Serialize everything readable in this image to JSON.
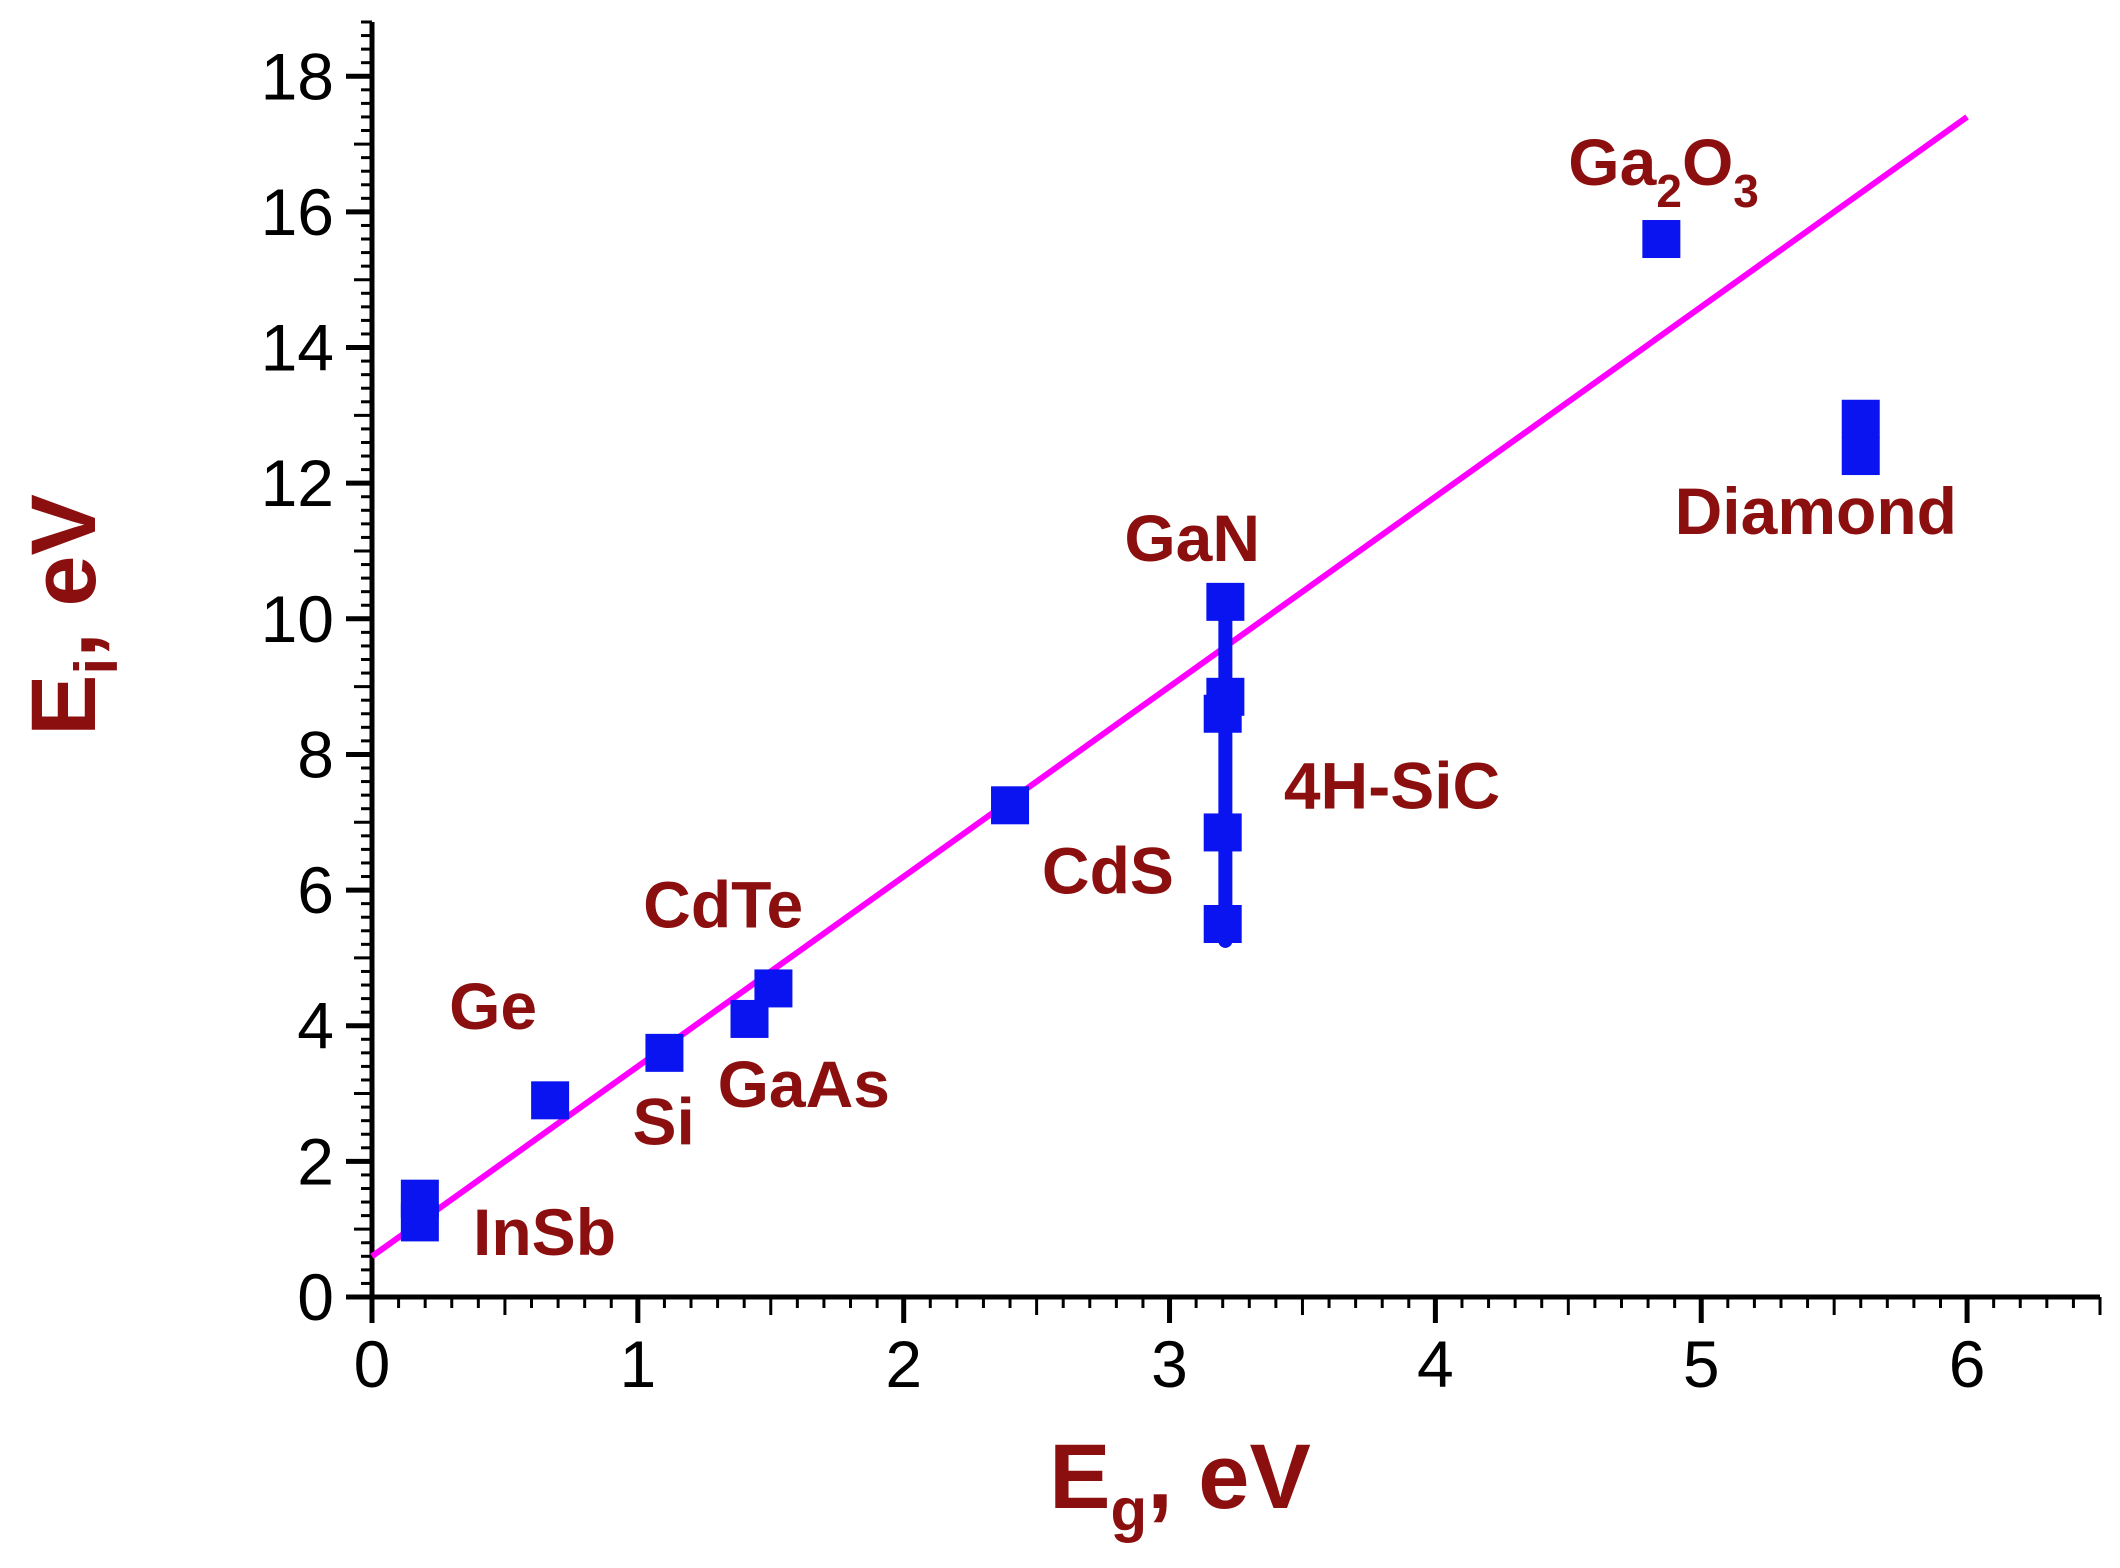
{
  "chart_data": {
    "type": "scatter",
    "title": "",
    "xlabel": {
      "main": "E",
      "sub": "g",
      "suffix": ", eV"
    },
    "ylabel": {
      "main": "E",
      "sub": "i",
      "suffix": ", eV"
    },
    "xlim": [
      0,
      6.5
    ],
    "ylim": [
      0,
      18.8
    ],
    "x_ticks": [
      0,
      1,
      2,
      3,
      4,
      5,
      6
    ],
    "x_tick_labels": [
      "0",
      "1",
      "2",
      "3",
      "4",
      "5",
      "6"
    ],
    "y_ticks": [
      0,
      2,
      4,
      6,
      8,
      10,
      12,
      14,
      16,
      18
    ],
    "y_tick_labels": [
      "0",
      "2",
      "4",
      "6",
      "8",
      "10",
      "12",
      "14",
      "16",
      "18"
    ],
    "grid": false,
    "colors": {
      "marker": "#0a14f0",
      "fit_line": "#ff00ff",
      "label": "#8b0f0f",
      "axis": "#000000"
    },
    "points": [
      {
        "x": 0.18,
        "y": 1.1
      },
      {
        "x": 0.18,
        "y": 1.45
      },
      {
        "x": 0.67,
        "y": 2.9
      },
      {
        "x": 1.1,
        "y": 3.6
      },
      {
        "x": 1.42,
        "y": 4.1
      },
      {
        "x": 1.51,
        "y": 4.55
      },
      {
        "x": 2.4,
        "y": 7.25
      },
      {
        "x": 3.2,
        "y": 5.5
      },
      {
        "x": 3.2,
        "y": 6.85
      },
      {
        "x": 3.2,
        "y": 8.6
      },
      {
        "x": 3.21,
        "y": 8.85
      },
      {
        "x": 3.21,
        "y": 10.25
      },
      {
        "x": 4.85,
        "y": 15.6
      },
      {
        "x": 5.6,
        "y": 12.4
      },
      {
        "x": 5.6,
        "y": 12.95
      }
    ],
    "vertical_bar": {
      "x": 3.21,
      "y_low": 5.25,
      "y_high": 10.15
    },
    "fit_line": {
      "x": [
        0.0,
        6.0
      ],
      "y": [
        0.6,
        17.4
      ]
    },
    "labels": [
      {
        "text": "InSb",
        "x": 0.38,
        "y": 0.62
      },
      {
        "text": "Ge",
        "x": 0.29,
        "y": 3.95
      },
      {
        "text": "Si",
        "x": 0.98,
        "y": 2.25
      },
      {
        "text": "GaAs",
        "x": 1.3,
        "y": 2.8
      },
      {
        "text": "CdTe",
        "x": 1.02,
        "y": 5.45
      },
      {
        "text": "CdS",
        "x": 2.52,
        "y": 5.95
      },
      {
        "text": "4H-SiC",
        "x": 3.43,
        "y": 7.2
      },
      {
        "text": "GaN",
        "x": 2.83,
        "y": 10.85
      },
      {
        "text": "Diamond",
        "x": 4.9,
        "y": 11.25
      },
      {
        "text": "Ga",
        "sub1": "2",
        "mid": "O",
        "sub2": "3",
        "x": 4.5,
        "y": 16.4
      }
    ]
  }
}
